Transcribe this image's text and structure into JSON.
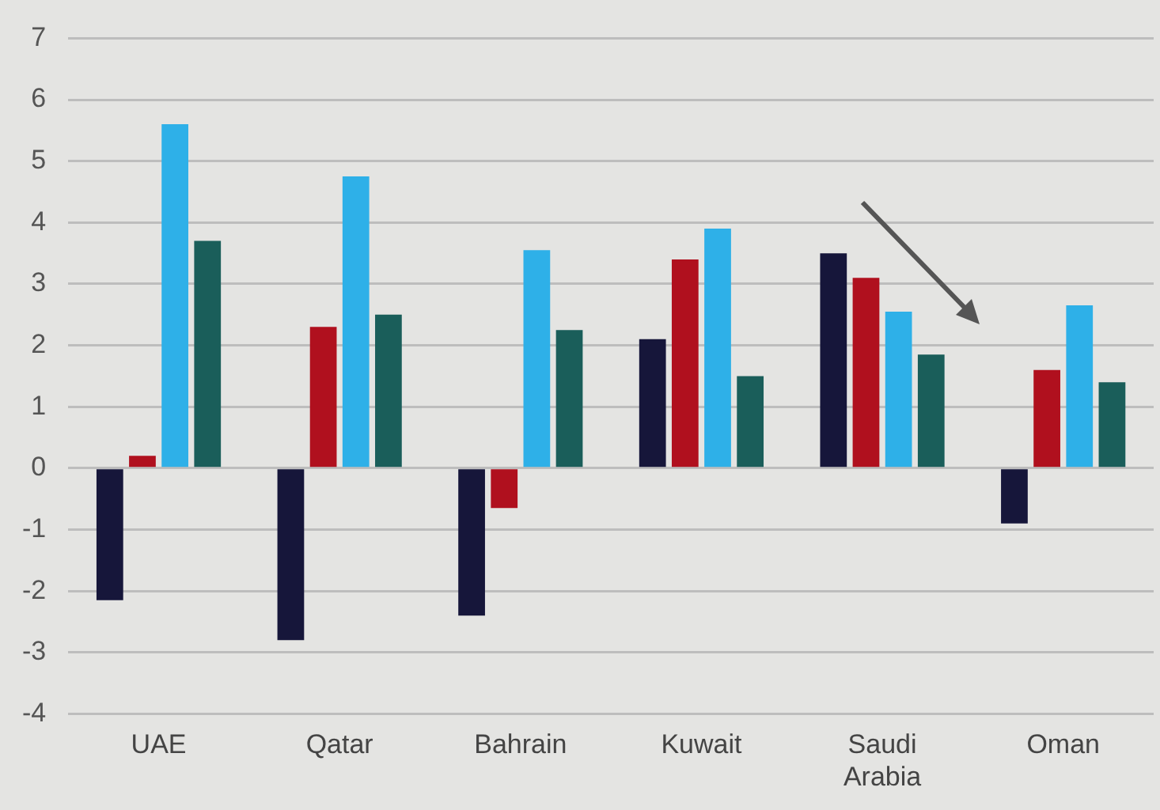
{
  "chart_data": {
    "type": "bar",
    "categories": [
      "UAE",
      "Qatar",
      "Bahrain",
      "Kuwait",
      "Saudi Arabia",
      "Oman"
    ],
    "series": [
      {
        "color": "#16163a",
        "values": [
          -2.15,
          -2.8,
          -2.4,
          2.1,
          3.5,
          -0.9
        ]
      },
      {
        "color": "#b0101e",
        "values": [
          0.2,
          2.3,
          -0.65,
          3.4,
          3.1,
          1.6
        ]
      },
      {
        "color": "#2eb0e8",
        "values": [
          5.6,
          4.75,
          3.55,
          3.9,
          2.55,
          2.65
        ]
      },
      {
        "color": "#1a5e5a",
        "values": [
          3.7,
          2.5,
          2.25,
          1.5,
          1.85,
          1.4
        ]
      }
    ],
    "ylim": [
      -4,
      7
    ],
    "yticks": [
      -4,
      -3,
      -2,
      -1,
      0,
      1,
      2,
      3,
      4,
      5,
      6,
      7
    ],
    "grid": "y",
    "legend": false
  }
}
